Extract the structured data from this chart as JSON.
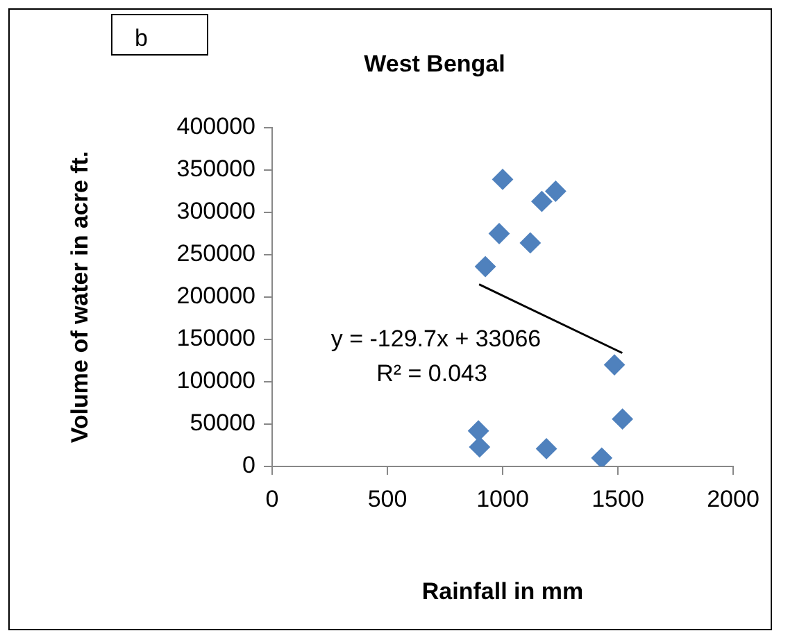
{
  "chart_data": {
    "type": "scatter",
    "title": "West Bengal",
    "xlabel": "Rainfall in mm",
    "ylabel": "Volume of water in acre ft.",
    "annotations": [
      "b",
      "y = -129.7x + 33066",
      "R² = 0.043"
    ],
    "xlim": [
      0,
      2000
    ],
    "xticks": [
      0,
      500,
      1000,
      1500,
      2000
    ],
    "ylim": [
      0,
      400000
    ],
    "yticks": [
      0,
      50000,
      100000,
      150000,
      200000,
      250000,
      300000,
      350000,
      400000
    ],
    "grid": false,
    "legend": false,
    "marker": "diamond",
    "series": [
      {
        "color": "#4f81bd",
        "x": [
          1000,
          1170,
          1230,
          985,
          1120,
          925,
          1485,
          1520,
          895,
          900,
          1190,
          1430
        ],
        "values": [
          339000,
          313000,
          325000,
          275000,
          264000,
          236000,
          120000,
          56000,
          42000,
          23000,
          21000,
          10000
        ]
      },
      {
        "type": "line",
        "color": "#000000",
        "marker": "none",
        "line_style": "solid",
        "x": [
          898,
          1519
        ],
        "values": [
          215000,
          134000
        ]
      }
    ]
  }
}
